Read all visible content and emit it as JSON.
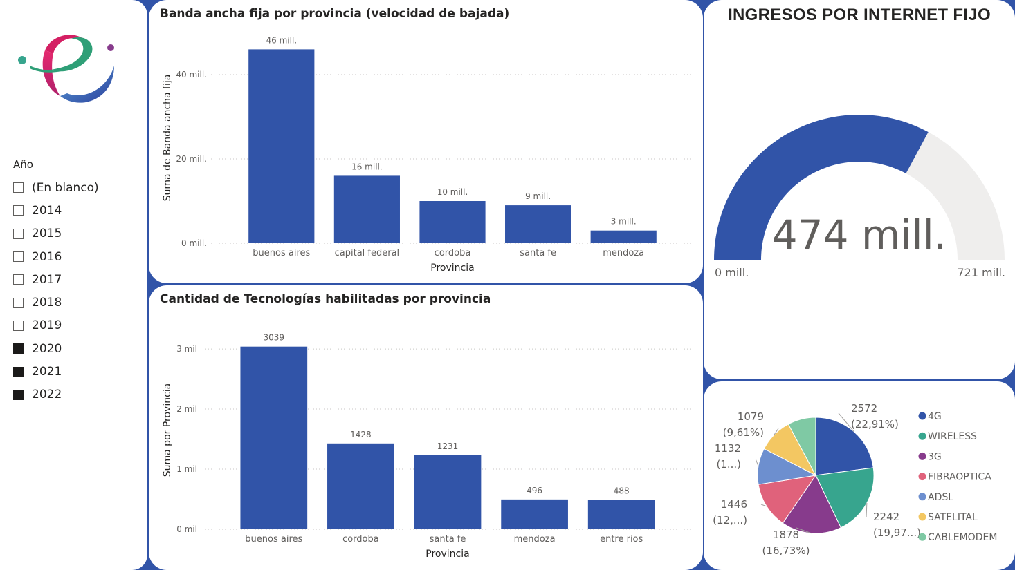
{
  "slicer": {
    "title": "Año",
    "items": [
      {
        "label": "(En blanco)",
        "checked": false
      },
      {
        "label": "2014",
        "checked": false
      },
      {
        "label": "2015",
        "checked": false
      },
      {
        "label": "2016",
        "checked": false
      },
      {
        "label": "2017",
        "checked": false
      },
      {
        "label": "2018",
        "checked": false
      },
      {
        "label": "2019",
        "checked": false
      },
      {
        "label": "2020",
        "checked": true
      },
      {
        "label": "2021",
        "checked": true
      },
      {
        "label": "2022",
        "checked": true
      }
    ]
  },
  "gauge": {
    "title": "INGRESOS POR INTERNET FIJO",
    "value_label": "474 mill.",
    "min_label": "0 mill.",
    "max_label": "721 mill.",
    "value": 474,
    "min": 0,
    "max": 721,
    "fill_color": "#3154a8",
    "track_color": "#efeeed"
  },
  "chart_data": [
    {
      "type": "bar",
      "title": "Banda ancha fija por provincia (velocidad de bajada)",
      "xlabel": "Provincia",
      "ylabel": "Suma de Banda ancha fija",
      "categories": [
        "buenos aires",
        "capital federal",
        "cordoba",
        "santa fe",
        "mendoza"
      ],
      "values": [
        46,
        16,
        10,
        9,
        3
      ],
      "data_labels": [
        "46 mill.",
        "16 mill.",
        "10 mill.",
        "9 mill.",
        "3 mill."
      ],
      "ylim": [
        0,
        50
      ],
      "yticks": [
        0,
        20,
        40
      ],
      "ytick_labels": [
        "0 mill.",
        "20 mill.",
        "40 mill."
      ],
      "grid": true,
      "color": "#3154a8"
    },
    {
      "type": "bar",
      "title": "Cantidad de Tecnologías habilitadas por provincia",
      "xlabel": "Provincia",
      "ylabel": "Suma por Provincia",
      "categories": [
        "buenos aires",
        "cordoba",
        "santa fe",
        "mendoza",
        "entre rios"
      ],
      "values": [
        3039,
        1428,
        1231,
        496,
        488
      ],
      "data_labels": [
        "3039",
        "1428",
        "1231",
        "496",
        "488"
      ],
      "ylim": [
        0,
        3300
      ],
      "yticks": [
        0,
        1000,
        2000,
        3000
      ],
      "ytick_labels": [
        "0 mil",
        "1 mil",
        "2 mil",
        "3 mil"
      ],
      "grid": true,
      "color": "#3154a8"
    },
    {
      "type": "pie",
      "legend_position": "right",
      "slices": [
        {
          "name": "4G",
          "value": 2572,
          "label1": "2572",
          "label2": "(22,91%)",
          "color": "#3154a8"
        },
        {
          "name": "WIRELESS",
          "value": 2242,
          "label1": "2242",
          "label2": "(19,97...)",
          "color": "#37a58e"
        },
        {
          "name": "3G",
          "value": 1878,
          "label1": "1878",
          "label2": "(16,73%)",
          "color": "#873b8c"
        },
        {
          "name": "FIBRAOPTICA",
          "value": 1446,
          "label1": "1446",
          "label2": "(12,...)",
          "color": "#e0627b"
        },
        {
          "name": "ADSL",
          "value": 1132,
          "label1": "1132",
          "label2": "(1...)",
          "color": "#6d8fcf"
        },
        {
          "name": "SATELITAL",
          "value": 1079,
          "label1": "1079",
          "label2": "(9,61%)",
          "color": "#f3c762"
        },
        {
          "name": "CABLEMODEM",
          "value": 878,
          "label1": "",
          "label2": "",
          "color": "#7fc9a4"
        }
      ]
    }
  ]
}
